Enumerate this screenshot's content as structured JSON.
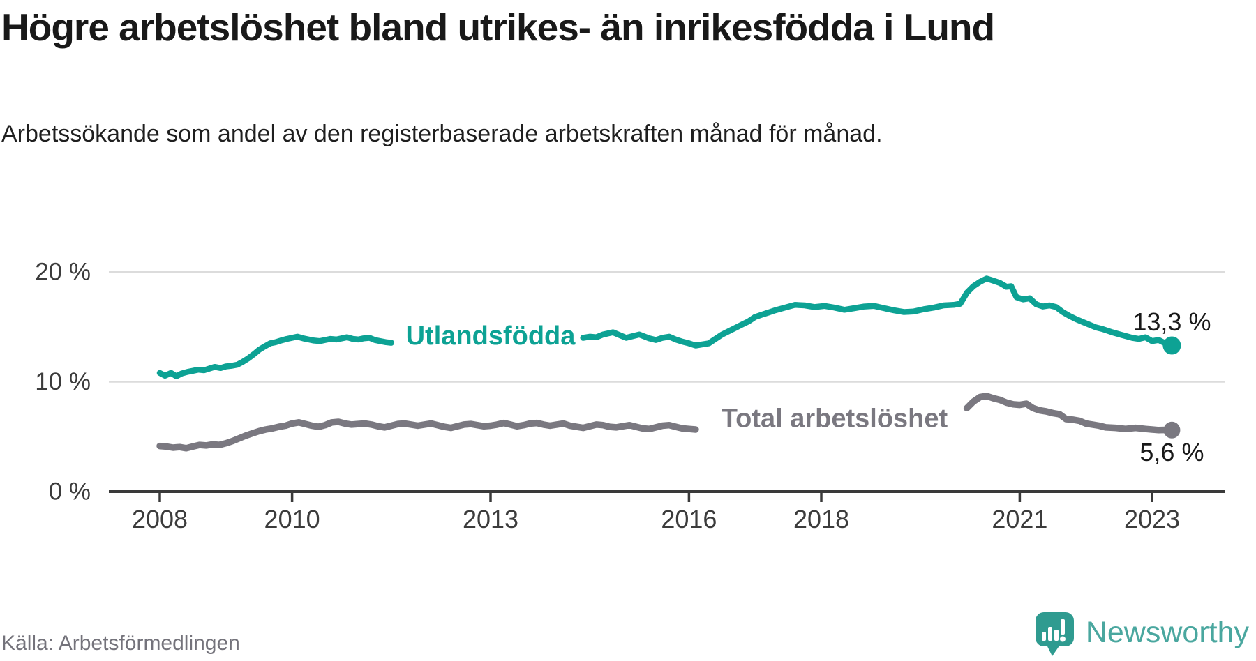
{
  "header": {
    "title": "Högre arbetslöshet bland utrikes- än inrikesfödda i Lund",
    "title_lines": [
      "Högre arbetslöshet bland utrikes- än inrikesfödda i Lund"
    ],
    "subtitle": "Arbetssökande som andel av den registerbaserade arbetskraften månad för månad."
  },
  "footer": {
    "source": "Källa: Arbetsförmedlingen",
    "brand": "Newsworthy",
    "brand_icon": "newsworthy-speech-bubble-bar-chart"
  },
  "colors": {
    "series_foreign": "#0da294",
    "series_total": "#7a7880",
    "axis_line": "#3a3a3a",
    "axis_text": "#3c3c3c",
    "gridline": "#dcdcdc",
    "value_label": "#191919",
    "brand_text": "#4aa79f",
    "brand_icon": "#2f9b90",
    "source_text": "#74737b"
  },
  "chart_data": {
    "type": "line",
    "title": "Högre arbetslöshet bland utrikes- än inrikesfödda i Lund",
    "subtitle": "Arbetssökande som andel av den registerbaserade arbetskraften månad för månad.",
    "xlabel": "",
    "ylabel": "",
    "grid": "horizontal-only",
    "legend_position": "inline-on-lines",
    "xlim": [
      2007.2,
      2024.1
    ],
    "ylim": [
      0,
      21.5
    ],
    "y_ticks": [
      {
        "value": 0,
        "label": "0 %"
      },
      {
        "value": 10,
        "label": "10 %"
      },
      {
        "value": 20,
        "label": "20 %"
      }
    ],
    "x_ticks": [
      {
        "value": 2008,
        "label": "2008"
      },
      {
        "value": 2010,
        "label": "2010"
      },
      {
        "value": 2013,
        "label": "2013"
      },
      {
        "value": 2016,
        "label": "2016"
      },
      {
        "value": 2018,
        "label": "2018"
      },
      {
        "value": 2021,
        "label": "2021"
      },
      {
        "value": 2023,
        "label": "2023"
      }
    ],
    "series": [
      {
        "name": "Utlandsfödda",
        "color": "#0da294",
        "inline_label": {
          "text": "Utlandsfödda",
          "x": 2013.0,
          "y": 14.15
        },
        "end_point": {
          "x": 2023.3,
          "y": 13.3
        },
        "end_value_label": {
          "text": "13,3 %",
          "x": 2023.3,
          "y": 15.45
        },
        "segments": [
          [
            [
              2008.0,
              10.8
            ],
            [
              2008.08,
              10.55
            ],
            [
              2008.17,
              10.8
            ],
            [
              2008.25,
              10.5
            ],
            [
              2008.33,
              10.75
            ],
            [
              2008.42,
              10.9
            ],
            [
              2008.5,
              11.0
            ],
            [
              2008.58,
              11.1
            ],
            [
              2008.67,
              11.05
            ],
            [
              2008.75,
              11.2
            ],
            [
              2008.83,
              11.35
            ],
            [
              2008.92,
              11.25
            ],
            [
              2009.0,
              11.4
            ],
            [
              2009.08,
              11.45
            ],
            [
              2009.17,
              11.55
            ],
            [
              2009.25,
              11.8
            ],
            [
              2009.33,
              12.1
            ],
            [
              2009.42,
              12.5
            ],
            [
              2009.5,
              12.9
            ],
            [
              2009.58,
              13.2
            ],
            [
              2009.67,
              13.5
            ],
            [
              2009.75,
              13.6
            ],
            [
              2009.83,
              13.75
            ],
            [
              2009.92,
              13.9
            ],
            [
              2010.0,
              14.0
            ],
            [
              2010.08,
              14.1
            ],
            [
              2010.17,
              13.95
            ],
            [
              2010.25,
              13.85
            ],
            [
              2010.33,
              13.75
            ],
            [
              2010.42,
              13.7
            ],
            [
              2010.5,
              13.8
            ],
            [
              2010.58,
              13.9
            ],
            [
              2010.67,
              13.85
            ],
            [
              2010.75,
              13.95
            ],
            [
              2010.83,
              14.05
            ],
            [
              2010.92,
              13.9
            ],
            [
              2011.0,
              13.85
            ],
            [
              2011.08,
              13.95
            ],
            [
              2011.17,
              14.0
            ],
            [
              2011.25,
              13.8
            ],
            [
              2011.33,
              13.7
            ],
            [
              2011.42,
              13.6
            ],
            [
              2011.5,
              13.55
            ]
          ],
          [
            [
              2014.4,
              14.0
            ],
            [
              2014.5,
              14.1
            ],
            [
              2014.6,
              14.05
            ],
            [
              2014.7,
              14.3
            ],
            [
              2014.85,
              14.5
            ],
            [
              2014.95,
              14.25
            ],
            [
              2015.05,
              14.0
            ],
            [
              2015.15,
              14.15
            ],
            [
              2015.25,
              14.3
            ],
            [
              2015.4,
              13.95
            ],
            [
              2015.5,
              13.8
            ],
            [
              2015.6,
              14.0
            ],
            [
              2015.7,
              14.1
            ],
            [
              2015.8,
              13.85
            ],
            [
              2015.9,
              13.65
            ],
            [
              2016.0,
              13.5
            ],
            [
              2016.1,
              13.3
            ],
            [
              2016.2,
              13.4
            ],
            [
              2016.3,
              13.5
            ],
            [
              2016.4,
              13.9
            ],
            [
              2016.5,
              14.3
            ],
            [
              2016.6,
              14.6
            ],
            [
              2016.7,
              14.9
            ],
            [
              2016.8,
              15.2
            ],
            [
              2016.9,
              15.5
            ],
            [
              2017.0,
              15.9
            ],
            [
              2017.1,
              16.1
            ],
            [
              2017.2,
              16.3
            ],
            [
              2017.3,
              16.5
            ],
            [
              2017.45,
              16.75
            ],
            [
              2017.6,
              17.0
            ],
            [
              2017.75,
              16.95
            ],
            [
              2017.9,
              16.8
            ],
            [
              2018.05,
              16.9
            ],
            [
              2018.2,
              16.75
            ],
            [
              2018.35,
              16.55
            ],
            [
              2018.5,
              16.7
            ],
            [
              2018.65,
              16.85
            ],
            [
              2018.8,
              16.9
            ],
            [
              2018.95,
              16.7
            ],
            [
              2019.1,
              16.5
            ],
            [
              2019.25,
              16.35
            ],
            [
              2019.4,
              16.4
            ],
            [
              2019.55,
              16.6
            ],
            [
              2019.7,
              16.75
            ],
            [
              2019.85,
              16.95
            ],
            [
              2020.0,
              17.0
            ],
            [
              2020.1,
              17.1
            ],
            [
              2020.2,
              18.1
            ],
            [
              2020.3,
              18.7
            ],
            [
              2020.4,
              19.1
            ],
            [
              2020.5,
              19.4
            ],
            [
              2020.6,
              19.2
            ],
            [
              2020.7,
              19.0
            ],
            [
              2020.8,
              18.65
            ],
            [
              2020.87,
              18.7
            ],
            [
              2020.95,
              17.7
            ],
            [
              2021.05,
              17.5
            ],
            [
              2021.15,
              17.6
            ],
            [
              2021.25,
              17.05
            ],
            [
              2021.35,
              16.85
            ],
            [
              2021.45,
              16.95
            ],
            [
              2021.55,
              16.8
            ],
            [
              2021.65,
              16.35
            ],
            [
              2021.75,
              16.0
            ],
            [
              2021.85,
              15.7
            ],
            [
              2021.95,
              15.45
            ],
            [
              2022.05,
              15.2
            ],
            [
              2022.15,
              14.95
            ],
            [
              2022.25,
              14.8
            ],
            [
              2022.4,
              14.5
            ],
            [
              2022.55,
              14.25
            ],
            [
              2022.7,
              14.0
            ],
            [
              2022.8,
              13.9
            ],
            [
              2022.9,
              14.05
            ],
            [
              2023.0,
              13.7
            ],
            [
              2023.1,
              13.8
            ],
            [
              2023.2,
              13.5
            ],
            [
              2023.3,
              13.3
            ]
          ]
        ]
      },
      {
        "name": "Total arbetslöshet",
        "color": "#7a7880",
        "inline_label": {
          "text": "Total arbetslöshet",
          "x": 2018.2,
          "y": 6.65
        },
        "end_point": {
          "x": 2023.3,
          "y": 5.6
        },
        "end_value_label": {
          "text": "5,6 %",
          "x": 2023.3,
          "y": 3.6
        },
        "segments": [
          [
            [
              2008.0,
              4.15
            ],
            [
              2008.1,
              4.1
            ],
            [
              2008.2,
              4.0
            ],
            [
              2008.3,
              4.05
            ],
            [
              2008.4,
              3.95
            ],
            [
              2008.5,
              4.1
            ],
            [
              2008.6,
              4.25
            ],
            [
              2008.7,
              4.2
            ],
            [
              2008.8,
              4.3
            ],
            [
              2008.9,
              4.25
            ],
            [
              2009.0,
              4.4
            ],
            [
              2009.1,
              4.6
            ],
            [
              2009.2,
              4.85
            ],
            [
              2009.3,
              5.1
            ],
            [
              2009.4,
              5.3
            ],
            [
              2009.5,
              5.5
            ],
            [
              2009.6,
              5.65
            ],
            [
              2009.7,
              5.75
            ],
            [
              2009.8,
              5.9
            ],
            [
              2009.9,
              6.0
            ],
            [
              2010.0,
              6.2
            ],
            [
              2010.1,
              6.3
            ],
            [
              2010.2,
              6.15
            ],
            [
              2010.3,
              6.0
            ],
            [
              2010.4,
              5.9
            ],
            [
              2010.5,
              6.05
            ],
            [
              2010.6,
              6.3
            ],
            [
              2010.7,
              6.35
            ],
            [
              2010.8,
              6.2
            ],
            [
              2010.9,
              6.1
            ],
            [
              2011.0,
              6.15
            ],
            [
              2011.1,
              6.2
            ],
            [
              2011.2,
              6.1
            ],
            [
              2011.3,
              5.95
            ],
            [
              2011.4,
              5.85
            ],
            [
              2011.5,
              6.0
            ],
            [
              2011.6,
              6.15
            ],
            [
              2011.7,
              6.2
            ],
            [
              2011.8,
              6.1
            ],
            [
              2011.9,
              6.0
            ],
            [
              2012.0,
              6.1
            ],
            [
              2012.1,
              6.2
            ],
            [
              2012.2,
              6.05
            ],
            [
              2012.3,
              5.9
            ],
            [
              2012.4,
              5.8
            ],
            [
              2012.5,
              5.95
            ],
            [
              2012.6,
              6.1
            ],
            [
              2012.7,
              6.15
            ],
            [
              2012.8,
              6.05
            ],
            [
              2012.9,
              5.95
            ],
            [
              2013.0,
              6.0
            ],
            [
              2013.1,
              6.1
            ],
            [
              2013.2,
              6.25
            ],
            [
              2013.3,
              6.1
            ],
            [
              2013.4,
              5.95
            ],
            [
              2013.5,
              6.05
            ],
            [
              2013.6,
              6.2
            ],
            [
              2013.7,
              6.25
            ],
            [
              2013.8,
              6.1
            ],
            [
              2013.9,
              6.0
            ],
            [
              2014.0,
              6.1
            ],
            [
              2014.1,
              6.2
            ],
            [
              2014.2,
              6.0
            ],
            [
              2014.3,
              5.9
            ],
            [
              2014.4,
              5.8
            ],
            [
              2014.5,
              5.95
            ],
            [
              2014.6,
              6.1
            ],
            [
              2014.7,
              6.05
            ],
            [
              2014.8,
              5.9
            ],
            [
              2014.9,
              5.85
            ],
            [
              2015.0,
              5.95
            ],
            [
              2015.1,
              6.05
            ],
            [
              2015.2,
              5.9
            ],
            [
              2015.3,
              5.75
            ],
            [
              2015.4,
              5.7
            ],
            [
              2015.5,
              5.85
            ],
            [
              2015.6,
              6.0
            ],
            [
              2015.7,
              6.05
            ],
            [
              2015.8,
              5.9
            ],
            [
              2015.9,
              5.75
            ],
            [
              2016.0,
              5.7
            ],
            [
              2016.1,
              5.65
            ]
          ],
          [
            [
              2020.2,
              7.6
            ],
            [
              2020.3,
              8.2
            ],
            [
              2020.4,
              8.6
            ],
            [
              2020.5,
              8.7
            ],
            [
              2020.6,
              8.5
            ],
            [
              2020.7,
              8.35
            ],
            [
              2020.8,
              8.1
            ],
            [
              2020.9,
              7.95
            ],
            [
              2021.0,
              7.9
            ],
            [
              2021.1,
              8.0
            ],
            [
              2021.2,
              7.6
            ],
            [
              2021.3,
              7.4
            ],
            [
              2021.4,
              7.3
            ],
            [
              2021.5,
              7.15
            ],
            [
              2021.6,
              7.05
            ],
            [
              2021.7,
              6.6
            ],
            [
              2021.8,
              6.55
            ],
            [
              2021.9,
              6.45
            ],
            [
              2022.0,
              6.2
            ],
            [
              2022.1,
              6.1
            ],
            [
              2022.2,
              6.0
            ],
            [
              2022.3,
              5.85
            ],
            [
              2022.45,
              5.8
            ],
            [
              2022.6,
              5.7
            ],
            [
              2022.75,
              5.8
            ],
            [
              2022.9,
              5.7
            ],
            [
              2023.0,
              5.65
            ],
            [
              2023.1,
              5.6
            ],
            [
              2023.2,
              5.62
            ],
            [
              2023.3,
              5.6
            ]
          ]
        ]
      }
    ]
  }
}
